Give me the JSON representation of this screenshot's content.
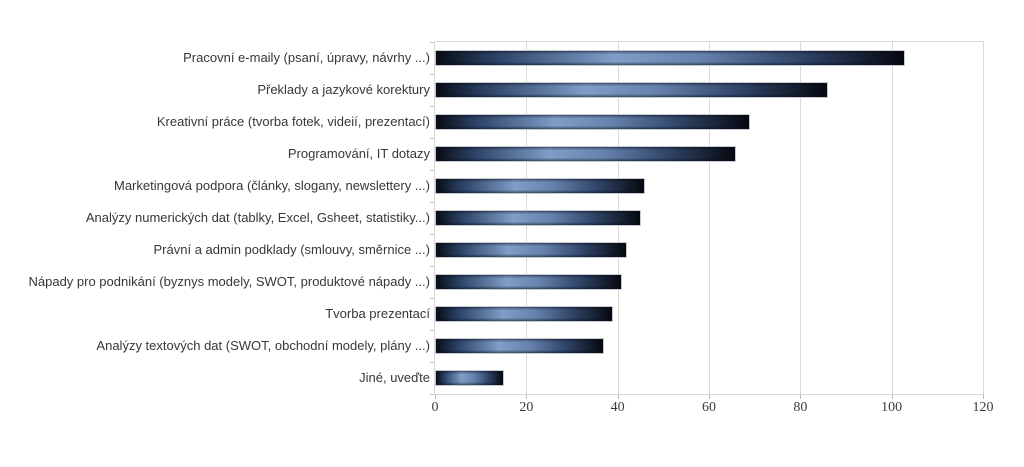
{
  "chart_data": {
    "type": "bar",
    "orientation": "horizontal",
    "title": "",
    "xlabel": "",
    "ylabel": "",
    "categories": [
      "Pracovní e-maily (psaní, úpravy, návrhy ...)",
      "Překlady a jazykové korektury",
      "Kreativní práce (tvorba fotek, videií, prezentací)",
      "Programování, IT dotazy",
      "Marketingová podpora (články, slogany, newslettery ...)",
      "Analýzy numerických dat (tablky, Excel, Gsheet, statistiky...)",
      "Právní a admin podklady (smlouvy, směrnice ...)",
      "Nápady pro podnikání (byznys modely, SWOT, produktové nápady ...)",
      "Tvorba prezentací",
      "Analýzy textových dat (SWOT, obchodní modely, plány ...)",
      "Jiné, uveďte"
    ],
    "values": [
      103,
      86,
      69,
      66,
      46,
      45,
      42,
      41,
      39,
      37,
      15
    ],
    "xlim": [
      0,
      120
    ],
    "xticks": [
      0,
      20,
      40,
      60,
      80,
      100,
      120
    ],
    "grid": "vertical",
    "legend": "none",
    "colors": {
      "bar_center": "#7f9dc6",
      "bar_edge": "#080c14",
      "bar_border": "#c6cbd3",
      "gridline": "#d9d9d9",
      "category_label": "#373737",
      "tick_label": "#3c3c3c",
      "background": "#ffffff"
    }
  }
}
